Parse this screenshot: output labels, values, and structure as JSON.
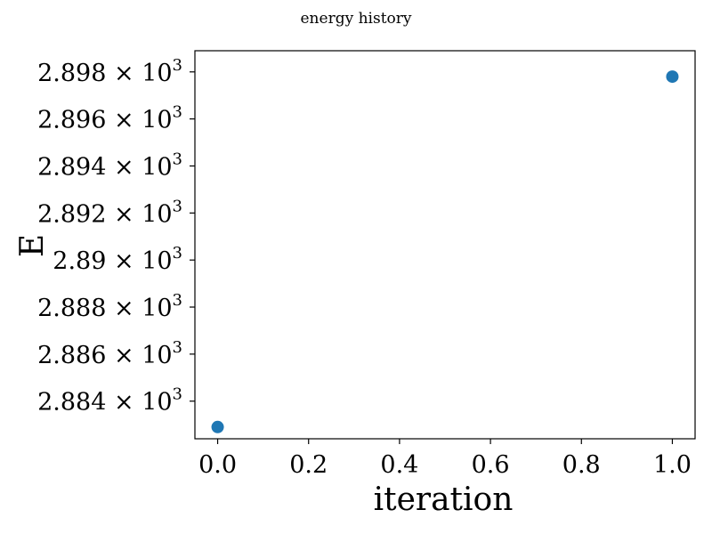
{
  "chart_data": {
    "type": "scatter",
    "title": "energy history",
    "xlabel": "iteration",
    "ylabel": "E",
    "x": [
      0.0,
      1.0
    ],
    "y": [
      2882.9,
      2897.8
    ],
    "xlim": [
      -0.05,
      1.05
    ],
    "ylim": [
      2882.4,
      2898.9
    ],
    "xticks": [
      0.0,
      0.2,
      0.4,
      0.6,
      0.8,
      1.0
    ],
    "xtick_labels": [
      "0.0",
      "0.2",
      "0.4",
      "0.6",
      "0.8",
      "1.0"
    ],
    "yticks": [
      2884,
      2886,
      2888,
      2890,
      2892,
      2894,
      2896,
      2898
    ],
    "ytick_mantissas": [
      "2.884",
      "2.886",
      "2.888",
      "2.89",
      "2.892",
      "2.894",
      "2.896",
      "2.898"
    ],
    "ytick_exponent_base": "10",
    "ytick_exponent": "3",
    "ytick_times": "×",
    "marker_color": "#1f77b4",
    "grid": false,
    "legend": false
  }
}
